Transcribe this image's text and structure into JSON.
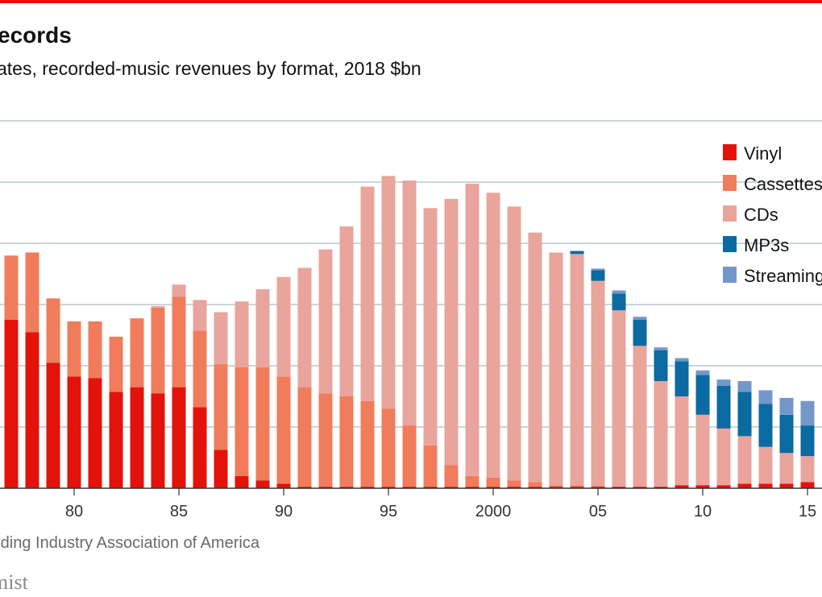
{
  "title": "ecords",
  "subtitle": "ates, recorded-music revenues by format, 2018 $bn",
  "source": "rding Industry Association of America",
  "logo": "mist",
  "colors": {
    "top_rule": "#e3120b",
    "vinyl": "#e3120b",
    "cassettes": "#f07c5b",
    "cds": "#e9a49c",
    "mp3s": "#0a6aa1",
    "streaming": "#7397c9",
    "grid": "#b9c6d1"
  },
  "chart_data": {
    "type": "bar",
    "stacked": true,
    "x": [
      1977,
      1978,
      1979,
      1980,
      1981,
      1982,
      1983,
      1984,
      1985,
      1986,
      1987,
      1988,
      1989,
      1990,
      1991,
      1992,
      1993,
      1994,
      1995,
      1996,
      1997,
      1998,
      1999,
      2000,
      2001,
      2002,
      2003,
      2004,
      2005,
      2006,
      2007,
      2008,
      2009,
      2010,
      2011,
      2012,
      2013,
      2014,
      2015
    ],
    "x_tick_labels": [
      "80",
      "85",
      "90",
      "95",
      "2000",
      "05",
      "10",
      "15"
    ],
    "x_tick_positions": [
      1980,
      1985,
      1990,
      1995,
      2000,
      2005,
      2010,
      2015
    ],
    "ylim": [
      0,
      24
    ],
    "y_gridlines": [
      0,
      4,
      8,
      12,
      16,
      20,
      24
    ],
    "grid": true,
    "legend_position": "right",
    "series": [
      {
        "name": "Vinyl",
        "values": [
          11.0,
          10.2,
          8.2,
          7.3,
          7.2,
          6.3,
          6.6,
          6.2,
          6.6,
          5.3,
          2.5,
          0.8,
          0.5,
          0.3,
          0.1,
          0.1,
          0.1,
          0.1,
          0.1,
          0.1,
          0.1,
          0.1,
          0.1,
          0.1,
          0.1,
          0.1,
          0.1,
          0.1,
          0.1,
          0.1,
          0.1,
          0.1,
          0.2,
          0.2,
          0.2,
          0.3,
          0.3,
          0.3,
          0.4
        ]
      },
      {
        "name": "Cassettes",
        "values": [
          4.2,
          5.2,
          4.2,
          3.6,
          3.7,
          3.6,
          4.5,
          5.6,
          5.9,
          5.0,
          5.6,
          7.1,
          7.4,
          7.0,
          6.5,
          6.1,
          5.9,
          5.6,
          5.1,
          4.0,
          2.7,
          1.4,
          0.7,
          0.6,
          0.4,
          0.3,
          0.1,
          0.1,
          0.05,
          0.02,
          0.0,
          0.0,
          0.0,
          0.0,
          0.0,
          0.0,
          0.0,
          0.0,
          0.0
        ]
      },
      {
        "name": "CDs",
        "values": [
          0.0,
          0.0,
          0.0,
          0.0,
          0.0,
          0.0,
          0.0,
          0.1,
          0.8,
          2.0,
          3.4,
          4.3,
          5.1,
          6.5,
          7.8,
          9.4,
          11.1,
          14.0,
          15.2,
          16.0,
          15.5,
          17.4,
          19.1,
          18.6,
          17.9,
          16.3,
          15.2,
          15.1,
          13.4,
          11.5,
          9.2,
          6.9,
          5.8,
          4.6,
          3.7,
          3.1,
          2.4,
          2.0,
          1.7
        ]
      },
      {
        "name": "MP3s",
        "values": [
          0.0,
          0.0,
          0.0,
          0.0,
          0.0,
          0.0,
          0.0,
          0.0,
          0.0,
          0.0,
          0.0,
          0.0,
          0.0,
          0.0,
          0.0,
          0.0,
          0.0,
          0.0,
          0.0,
          0.0,
          0.0,
          0.0,
          0.0,
          0.0,
          0.0,
          0.0,
          0.0,
          0.2,
          0.7,
          1.1,
          1.7,
          2.0,
          2.3,
          2.6,
          2.8,
          2.9,
          2.8,
          2.5,
          2.0
        ]
      },
      {
        "name": "Streaming",
        "values": [
          0.0,
          0.0,
          0.0,
          0.0,
          0.0,
          0.0,
          0.0,
          0.0,
          0.0,
          0.0,
          0.0,
          0.0,
          0.0,
          0.0,
          0.0,
          0.0,
          0.0,
          0.0,
          0.0,
          0.0,
          0.0,
          0.0,
          0.0,
          0.0,
          0.0,
          0.0,
          0.0,
          0.0,
          0.1,
          0.2,
          0.2,
          0.2,
          0.2,
          0.3,
          0.4,
          0.7,
          0.9,
          1.1,
          1.6
        ]
      }
    ],
    "legend": [
      "Vinyl",
      "Cassettes",
      "CDs",
      "MP3s",
      "Streaming"
    ]
  }
}
